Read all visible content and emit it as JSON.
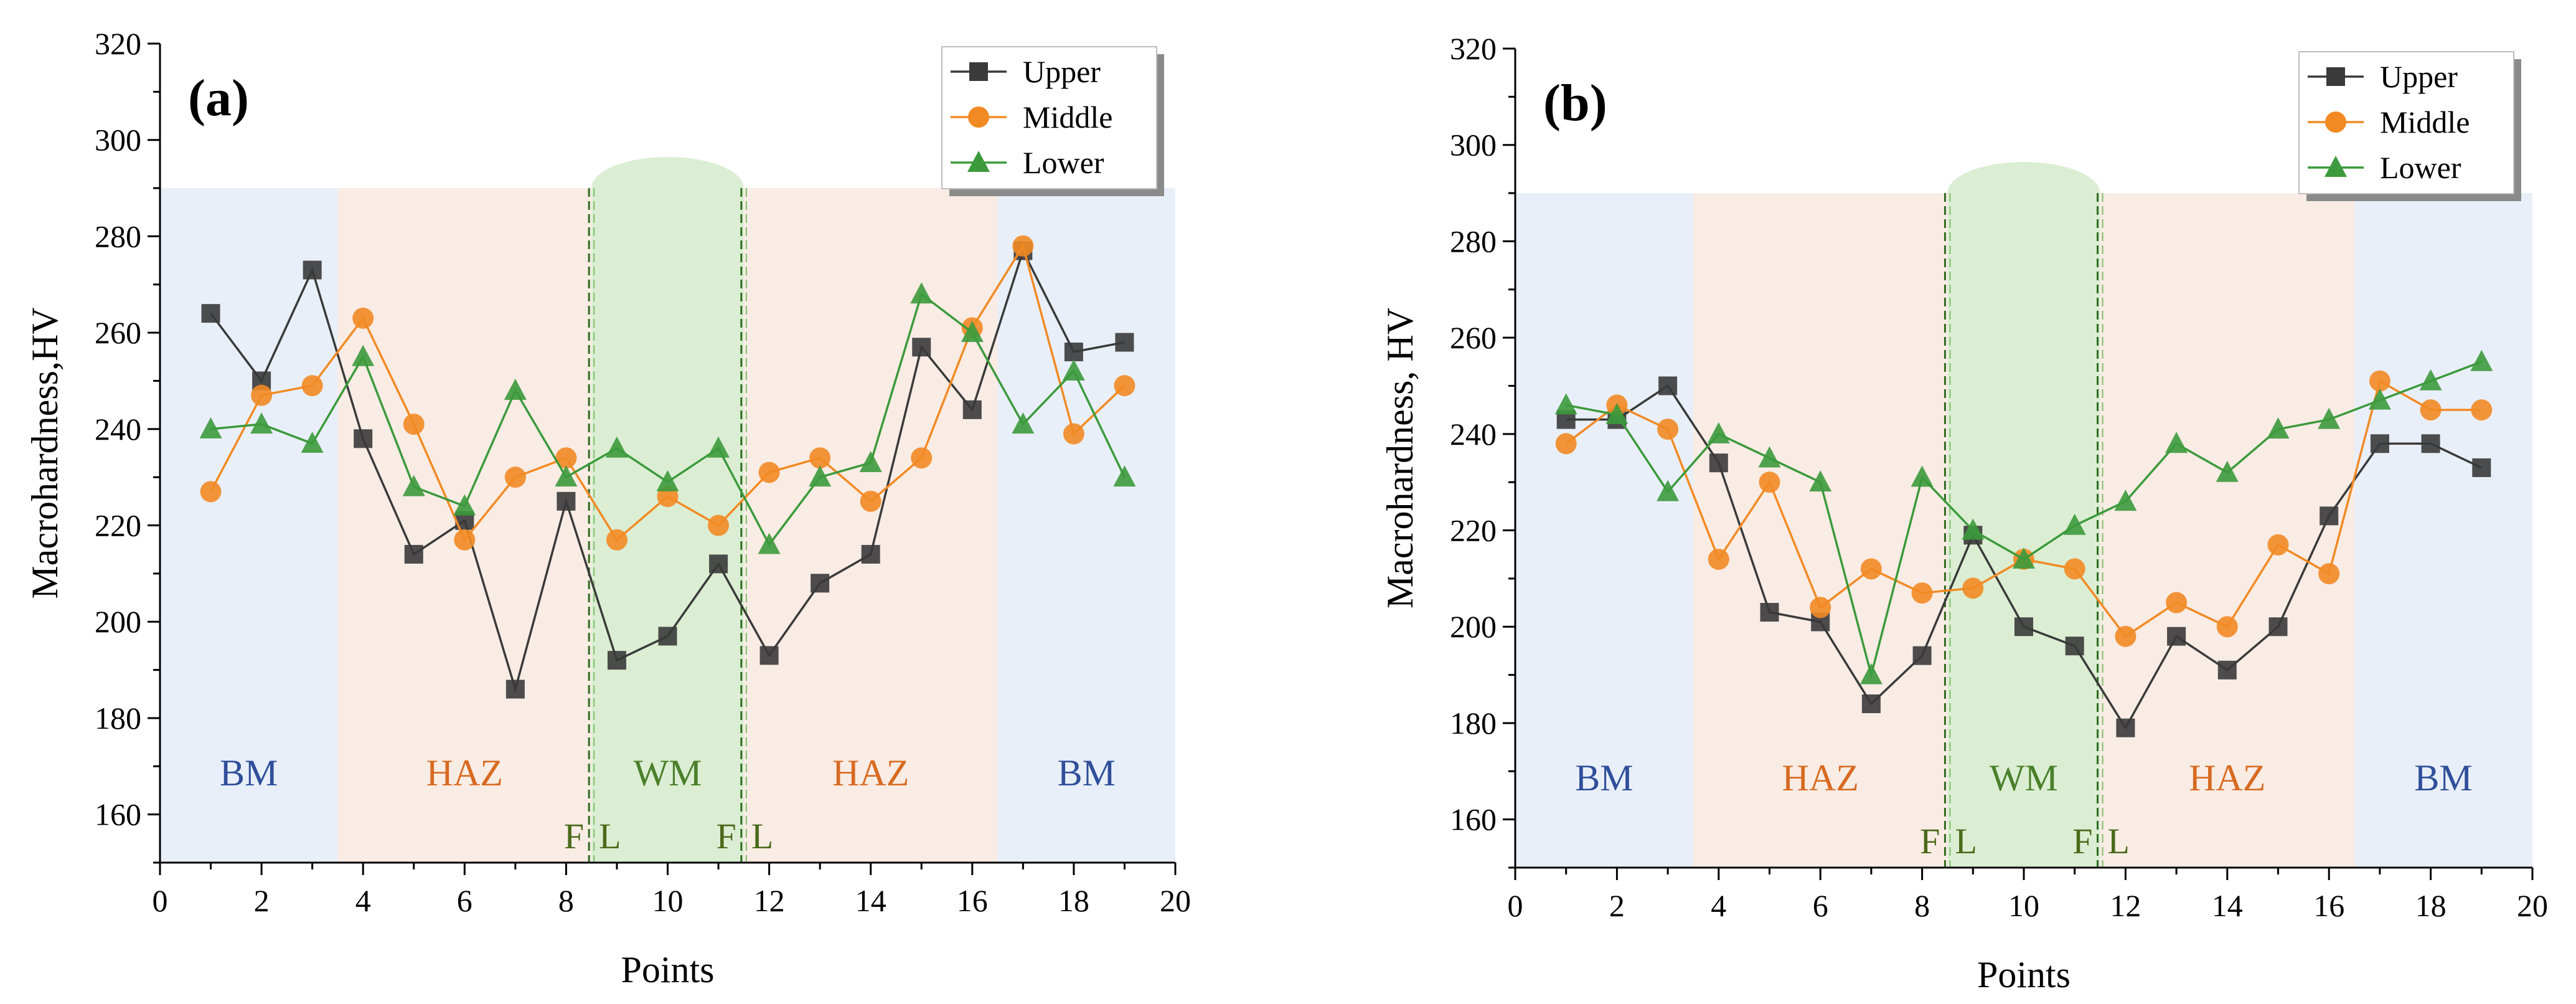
{
  "chart_data": [
    {
      "type": "line",
      "panel_label": "(a)",
      "xlabel": "Points",
      "ylabel": "Macrohardness,HV",
      "xlim": [
        0,
        20
      ],
      "ylim": [
        150,
        320
      ],
      "x_ticks": [
        0,
        2,
        4,
        6,
        8,
        10,
        12,
        14,
        16,
        18,
        20
      ],
      "y_ticks": [
        160,
        180,
        200,
        220,
        240,
        260,
        280,
        300,
        320
      ],
      "legend_position": "top-right",
      "regions": [
        {
          "label": "BM",
          "from": 0,
          "to": 3.5,
          "color": "#e9eff9",
          "text_color": "#2f4f9a"
        },
        {
          "label": "HAZ",
          "from": 3.5,
          "to": 8.5,
          "color": "#f8ece4",
          "text_color": "#d86a20"
        },
        {
          "label": "WM",
          "from": 8.5,
          "to": 11.5,
          "color": "#dbeed3",
          "text_color": "#4a7f2a"
        },
        {
          "label": "HAZ",
          "from": 11.5,
          "to": 16.5,
          "color": "#f8ece4",
          "text_color": "#d86a20"
        },
        {
          "label": "BM",
          "from": 16.5,
          "to": 20,
          "color": "#e9eff9",
          "text_color": "#2f4f9a"
        }
      ],
      "region_top": 290,
      "fusion_lines": [
        {
          "x": 8.5,
          "label_left": "F",
          "label_right": "L"
        },
        {
          "x": 11.5,
          "label_left": "F",
          "label_right": "L"
        }
      ],
      "x": [
        1,
        2,
        3,
        4,
        5,
        6,
        7,
        8,
        9,
        10,
        11,
        12,
        13,
        14,
        15,
        16,
        17,
        18,
        19
      ],
      "series": [
        {
          "name": "Upper",
          "color": "#3a3a3a",
          "marker": "square",
          "values": [
            264,
            250,
            273,
            238,
            214,
            221,
            186,
            225,
            192,
            197,
            212,
            193,
            208,
            214,
            257,
            244,
            277,
            256,
            258
          ]
        },
        {
          "name": "Middle",
          "color": "#f28a24",
          "marker": "circle",
          "values": [
            227,
            247,
            249,
            263,
            241,
            217,
            230,
            234,
            217,
            226,
            220,
            231,
            234,
            225,
            234,
            261,
            278,
            239,
            249
          ]
        },
        {
          "name": "Lower",
          "color": "#3c9a3c",
          "marker": "triangle",
          "values": [
            240,
            241,
            237,
            255,
            228,
            224,
            248,
            230,
            236,
            229,
            236,
            216,
            230,
            233,
            268,
            260,
            241,
            252,
            230
          ]
        }
      ]
    },
    {
      "type": "line",
      "panel_label": "(b)",
      "xlabel": "Points",
      "ylabel": "Macrohardness,  HV",
      "xlim": [
        0,
        20
      ],
      "ylim": [
        150,
        320
      ],
      "x_ticks": [
        0,
        2,
        4,
        6,
        8,
        10,
        12,
        14,
        16,
        18,
        20
      ],
      "y_ticks": [
        160,
        180,
        200,
        220,
        240,
        260,
        280,
        300,
        320
      ],
      "legend_position": "top-right",
      "regions": [
        {
          "label": "BM",
          "from": 0,
          "to": 3.5,
          "color": "#e9eff9",
          "text_color": "#2f4f9a"
        },
        {
          "label": "HAZ",
          "from": 3.5,
          "to": 8.5,
          "color": "#f8ece4",
          "text_color": "#d86a20"
        },
        {
          "label": "WM",
          "from": 8.5,
          "to": 11.5,
          "color": "#dbeed3",
          "text_color": "#4a7f2a"
        },
        {
          "label": "HAZ",
          "from": 11.5,
          "to": 16.5,
          "color": "#f8ece4",
          "text_color": "#d86a20"
        },
        {
          "label": "BM",
          "from": 16.5,
          "to": 20,
          "color": "#e9eff9",
          "text_color": "#2f4f9a"
        }
      ],
      "region_top": 290,
      "fusion_lines": [
        {
          "x": 8.5,
          "label_left": "F",
          "label_right": "L"
        },
        {
          "x": 11.5,
          "label_left": "F",
          "label_right": "L"
        }
      ],
      "x": [
        1,
        2,
        3,
        4,
        5,
        6,
        7,
        8,
        9,
        10,
        11,
        12,
        13,
        14,
        15,
        16,
        17,
        18,
        19
      ],
      "series": [
        {
          "name": "Upper",
          "color": "#3a3a3a",
          "marker": "square",
          "values": [
            243,
            243,
            250,
            234,
            203,
            201,
            184,
            194,
            219,
            200,
            196,
            179,
            198,
            191,
            200,
            223,
            238,
            238,
            233
          ]
        },
        {
          "name": "Middle",
          "color": "#f28a24",
          "marker": "circle",
          "values": [
            238,
            246,
            241,
            214,
            230,
            204,
            212,
            207,
            208,
            214,
            212,
            198,
            205,
            200,
            217,
            211,
            251,
            245,
            245
          ]
        },
        {
          "name": "Lower",
          "color": "#3c9a3c",
          "marker": "triangle",
          "values": [
            246,
            244,
            228,
            240,
            235,
            230,
            190,
            231,
            220,
            214,
            221,
            226,
            238,
            232,
            241,
            243,
            247,
            251,
            255
          ]
        }
      ]
    }
  ]
}
